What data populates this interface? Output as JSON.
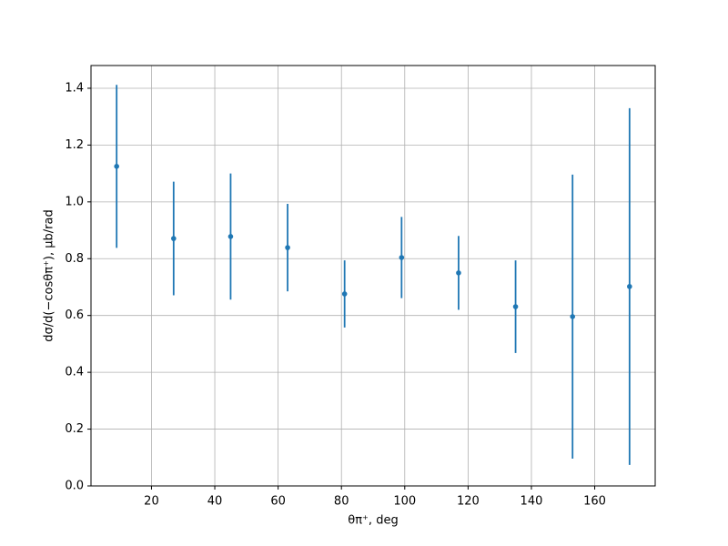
{
  "chart_data": {
    "type": "errorbar",
    "x_label": "θπ⁺, deg",
    "y_label": "dσ/d(−cosθπ⁺), μb/rad",
    "x": [
      9,
      27,
      45,
      63,
      81,
      99,
      117,
      135,
      153,
      171
    ],
    "values": [
      1.125,
      0.871,
      0.878,
      0.839,
      0.676,
      0.804,
      0.75,
      0.631,
      0.596,
      0.702
    ],
    "errors": [
      0.287,
      0.2,
      0.222,
      0.154,
      0.118,
      0.143,
      0.13,
      0.163,
      0.5,
      0.628
    ],
    "color": "#1f77b4",
    "xlim": [
      0.9,
      179.1
    ],
    "ylim": [
      0,
      1.48
    ],
    "xticks": [
      20,
      40,
      60,
      80,
      100,
      120,
      140,
      160
    ],
    "yticks": [
      {
        "value": 0,
        "label": "0.0"
      },
      {
        "value": 0.2,
        "label": "0.2"
      },
      {
        "value": 0.4,
        "label": "0.4"
      },
      {
        "value": 0.6,
        "label": "0.6"
      },
      {
        "value": 0.8,
        "label": "0.8"
      },
      {
        "value": 1.0,
        "label": "1.0"
      },
      {
        "value": 1.2,
        "label": "1.2"
      },
      {
        "value": 1.4,
        "label": "1.4"
      }
    ],
    "grid": true
  }
}
